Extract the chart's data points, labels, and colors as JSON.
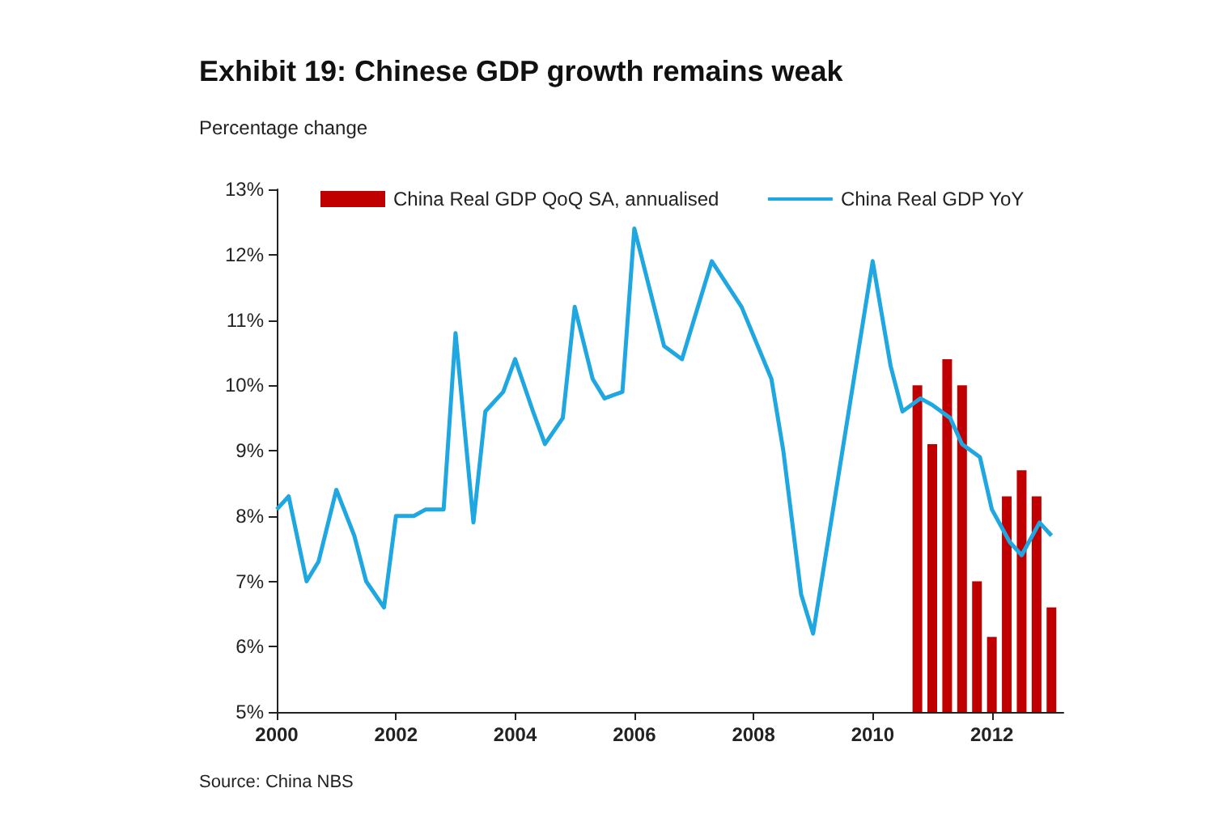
{
  "chart_data": {
    "type": "line",
    "title": "Exhibit 19: Chinese GDP growth remains weak",
    "ylabel": "Percentage change",
    "annotations": [
      "Source: China NBS"
    ],
    "series": [
      {
        "name": "China Real GDP QoQ SA, annualised",
        "type": "bar",
        "color": "#c00000",
        "x": [
          2010.75,
          2011.0,
          2011.25,
          2011.5,
          2011.75,
          2012.0,
          2012.25,
          2012.5,
          2012.75,
          2013.0
        ],
        "values": [
          10.0,
          9.1,
          10.4,
          10.0,
          7.0,
          6.15,
          8.3,
          8.7,
          8.3,
          6.6
        ]
      },
      {
        "name": "China Real GDP YoY",
        "color": "#1ea7e1",
        "x": [
          2000.0,
          2000.2,
          2000.5,
          2000.7,
          2001.0,
          2001.3,
          2001.5,
          2001.8,
          2002.0,
          2002.3,
          2002.5,
          2002.8,
          2003.0,
          2003.3,
          2003.5,
          2003.8,
          2004.0,
          2004.3,
          2004.5,
          2004.8,
          2005.0,
          2005.3,
          2005.5,
          2005.8,
          2006.0,
          2006.5,
          2006.8,
          2007.3,
          2007.8,
          2008.3,
          2008.5,
          2008.8,
          2009.0,
          2009.3,
          2010.0,
          2010.3,
          2010.5,
          2010.8,
          2011.0,
          2011.3,
          2011.5,
          2011.8,
          2012.0,
          2012.3,
          2012.5,
          2012.8,
          2013.0
        ],
        "values": [
          8.1,
          8.3,
          7.0,
          7.3,
          8.4,
          7.7,
          7.0,
          6.6,
          8.0,
          8.0,
          8.1,
          8.1,
          10.8,
          7.9,
          9.6,
          9.9,
          10.4,
          9.6,
          9.1,
          9.5,
          11.2,
          10.1,
          9.8,
          9.9,
          12.4,
          10.6,
          10.4,
          11.9,
          11.2,
          10.1,
          9.0,
          6.8,
          6.2,
          7.9,
          11.9,
          10.3,
          9.6,
          9.8,
          9.7,
          9.5,
          9.1,
          8.9,
          8.1,
          7.6,
          7.4,
          7.9,
          7.7
        ]
      }
    ],
    "xlim": [
      2000,
      2013.2
    ],
    "xticks": [
      2000,
      2002,
      2004,
      2006,
      2008,
      2010,
      2012
    ],
    "ylim": [
      5,
      13
    ],
    "yticks": [
      {
        "value": 5,
        "label": "5%"
      },
      {
        "value": 6,
        "label": "6%"
      },
      {
        "value": 7,
        "label": "7%"
      },
      {
        "value": 8,
        "label": "8%"
      },
      {
        "value": 9,
        "label": "9%"
      },
      {
        "value": 10,
        "label": "10%"
      },
      {
        "value": 11,
        "label": "11%"
      },
      {
        "value": 12,
        "label": "12%"
      },
      {
        "value": 13,
        "label": "13%"
      }
    ],
    "legend": "top",
    "grid": false,
    "marker": "none"
  }
}
